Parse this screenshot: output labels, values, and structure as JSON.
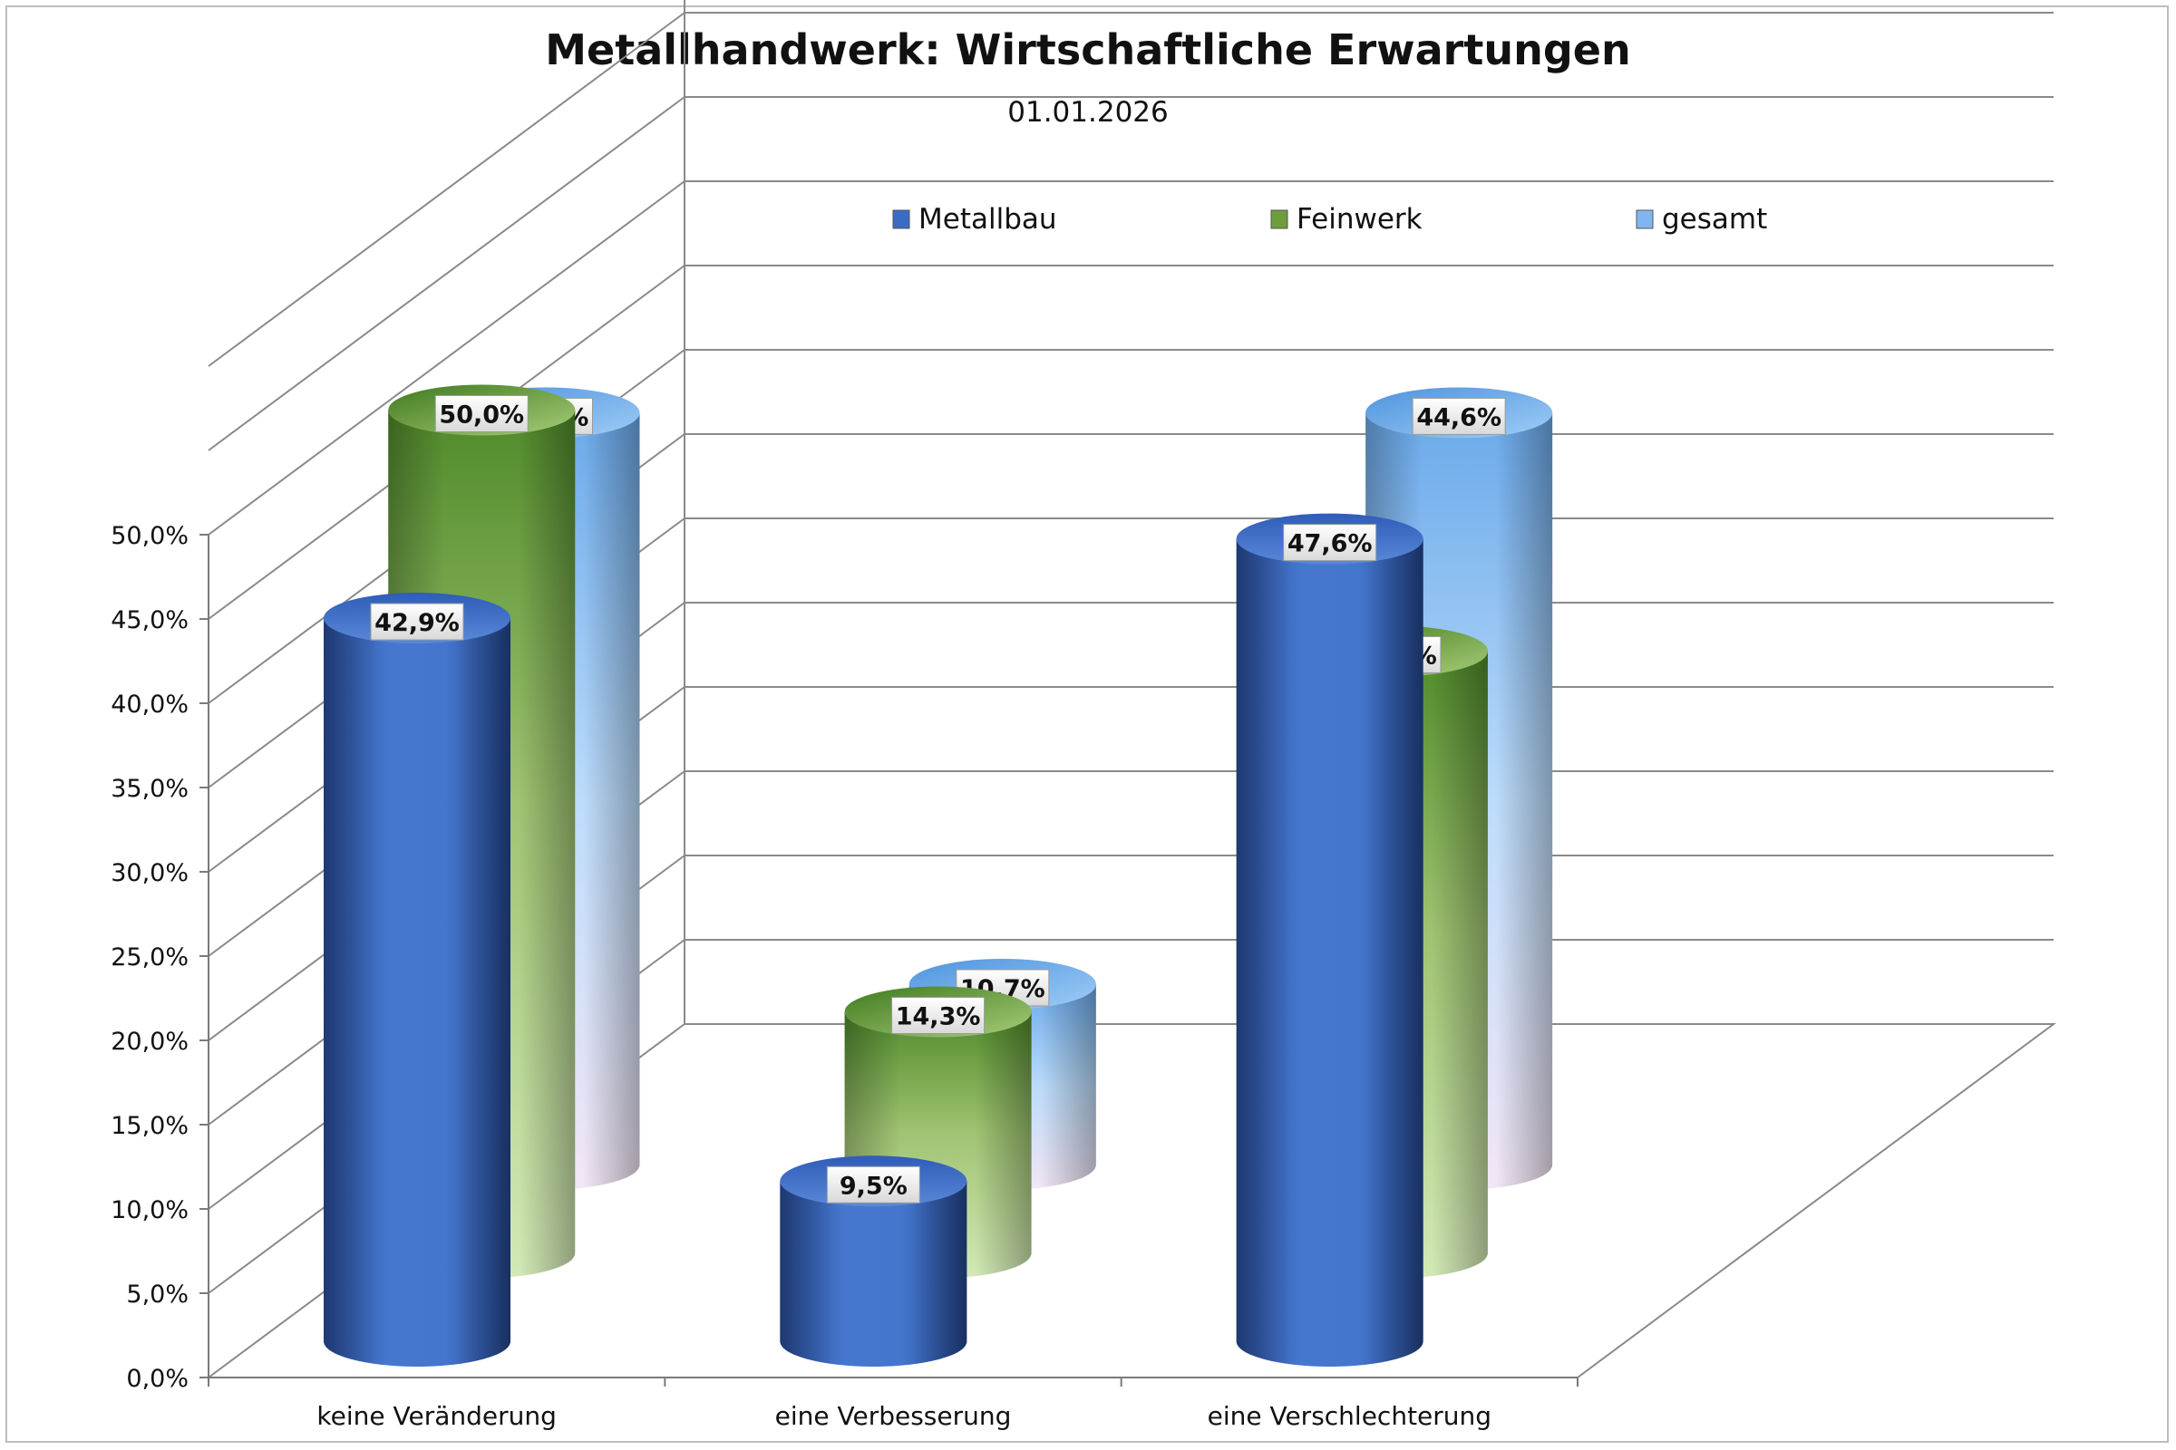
{
  "chart_data": {
    "type": "bar",
    "title": "Metallhandwerk: Wirtschaftliche Erwartungen",
    "subtitle": "01.01.2026",
    "categories": [
      "keine Veränderung",
      "eine Verbesserung",
      "eine Verschlechterung"
    ],
    "series": [
      {
        "name": "Metallbau",
        "values": [
          42.9,
          9.5,
          47.6
        ],
        "labels": [
          "42,9%",
          "9,5%",
          "47,6%"
        ]
      },
      {
        "name": "Feinwerk",
        "values": [
          50.0,
          14.3,
          35.7
        ],
        "labels": [
          "50,0%",
          "14,3%",
          "35,7%"
        ]
      },
      {
        "name": "gesamt",
        "values": [
          44.6,
          10.7,
          44.6
        ],
        "labels": [
          "44,6%",
          "10,7%",
          "44,6%"
        ]
      }
    ],
    "y_ticks": [
      "0,0%",
      "5,0%",
      "10,0%",
      "15,0%",
      "20,0%",
      "25,0%",
      "30,0%",
      "35,0%",
      "40,0%",
      "45,0%",
      "50,0%"
    ],
    "ylim": [
      0,
      50
    ],
    "grid": true,
    "legend_position": "top",
    "colors": {
      "Metallbau": "#3b6cc4",
      "Feinwerk": "#6e9e3c",
      "gesamt": "#7fb6ef"
    }
  }
}
